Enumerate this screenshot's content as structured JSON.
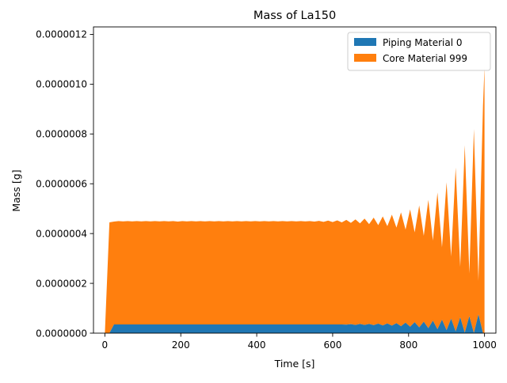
{
  "chart_data": {
    "type": "area",
    "stacked": true,
    "title": "Mass of La150",
    "xlabel": "Time [s]",
    "ylabel": "Mass [g]",
    "xlim": [
      -30,
      1030
    ],
    "ylim": [
      0,
      1.23e-06
    ],
    "xticks": [
      0,
      200,
      400,
      600,
      800,
      1000
    ],
    "xtick_labels": [
      "0",
      "200",
      "400",
      "600",
      "800",
      "1000"
    ],
    "yticks": [
      0,
      2e-07,
      4e-07,
      6e-07,
      8e-07,
      1e-06,
      1.2e-06
    ],
    "ytick_labels": [
      "0.0000000",
      "0.0000002",
      "0.0000004",
      "0.0000006",
      "0.0000008",
      "0.0000010",
      "0.0000012"
    ],
    "legend_position": "top-right",
    "grid": false,
    "series": [
      {
        "name": "Piping Material 0",
        "color": "#1f77b4"
      },
      {
        "name": "Core Material 999",
        "color": "#ff7f0e"
      }
    ],
    "x": [
      0,
      12,
      24,
      36,
      48,
      60,
      72,
      84,
      96,
      108,
      120,
      132,
      144,
      156,
      168,
      180,
      192,
      204,
      216,
      228,
      240,
      252,
      264,
      276,
      288,
      300,
      312,
      324,
      336,
      348,
      360,
      372,
      384,
      396,
      408,
      420,
      432,
      444,
      456,
      468,
      480,
      492,
      504,
      516,
      528,
      540,
      552,
      564,
      576,
      588,
      600,
      612,
      624,
      636,
      648,
      660,
      672,
      684,
      696,
      708,
      720,
      732,
      744,
      756,
      768,
      780,
      792,
      804,
      816,
      828,
      840,
      852,
      864,
      876,
      888,
      900,
      912,
      924,
      936,
      948,
      960,
      972,
      984,
      996,
      1000
    ],
    "piping": [
      0,
      0,
      3.5e-08,
      3.5e-08,
      3.5e-08,
      3.5e-08,
      3.5e-08,
      3.5e-08,
      3.5e-08,
      3.5e-08,
      3.5e-08,
      3.5e-08,
      3.5e-08,
      3.5e-08,
      3.5e-08,
      3.5e-08,
      3.5e-08,
      3.5e-08,
      3.5e-08,
      3.5e-08,
      3.5e-08,
      3.5e-08,
      3.5e-08,
      3.5e-08,
      3.5e-08,
      3.5e-08,
      3.5e-08,
      3.5e-08,
      3.5e-08,
      3.5e-08,
      3.5e-08,
      3.5e-08,
      3.5e-08,
      3.5e-08,
      3.5e-08,
      3.5e-08,
      3.5e-08,
      3.5e-08,
      3.5e-08,
      3.5e-08,
      3.5e-08,
      3.5e-08,
      3.5e-08,
      3.5e-08,
      3.5e-08,
      3.5e-08,
      3.5e-08,
      3.5e-08,
      3.5e-08,
      3.5e-08,
      3.5e-08,
      3.5e-08,
      3.5e-08,
      3.4e-08,
      3.6e-08,
      3.3e-08,
      3.7e-08,
      3.3e-08,
      3.7e-08,
      3.2e-08,
      3.8e-08,
      3.1e-08,
      3.9e-08,
      3e-08,
      4e-08,
      2.8e-08,
      4.2e-08,
      2.6e-08,
      4.4e-08,
      2.3e-08,
      4.6e-08,
      2e-08,
      5e-08,
      1.6e-08,
      5.4e-08,
      1.2e-08,
      5.8e-08,
      7e-09,
      6.3e-08,
      2e-09,
      6.8e-08,
      0,
      7.5e-08,
      0,
      0
    ],
    "total": [
      0,
      4.45e-07,
      4.48e-07,
      4.5e-07,
      4.49e-07,
      4.5e-07,
      4.49e-07,
      4.5e-07,
      4.49e-07,
      4.5e-07,
      4.49e-07,
      4.5e-07,
      4.49e-07,
      4.5e-07,
      4.49e-07,
      4.5e-07,
      4.48e-07,
      4.5e-07,
      4.49e-07,
      4.5e-07,
      4.49e-07,
      4.5e-07,
      4.49e-07,
      4.5e-07,
      4.49e-07,
      4.5e-07,
      4.49e-07,
      4.5e-07,
      4.49e-07,
      4.5e-07,
      4.49e-07,
      4.5e-07,
      4.49e-07,
      4.5e-07,
      4.49e-07,
      4.5e-07,
      4.49e-07,
      4.5e-07,
      4.49e-07,
      4.5e-07,
      4.49e-07,
      4.5e-07,
      4.49e-07,
      4.5e-07,
      4.49e-07,
      4.5e-07,
      4.48e-07,
      4.51e-07,
      4.47e-07,
      4.52e-07,
      4.46e-07,
      4.53e-07,
      4.45e-07,
      4.55e-07,
      4.43e-07,
      4.57e-07,
      4.41e-07,
      4.6e-07,
      4.38e-07,
      4.64e-07,
      4.34e-07,
      4.69e-07,
      4.3e-07,
      4.76e-07,
      4.24e-07,
      4.85e-07,
      4.16e-07,
      4.97e-07,
      4.05e-07,
      5.13e-07,
      3.91e-07,
      5.35e-07,
      3.72e-07,
      5.65e-07,
      3.45e-07,
      6.06e-07,
      3.08e-07,
      6.65e-07,
      2.66e-07,
      7.55e-07,
      2.4e-07,
      8.2e-07,
      2.1e-07,
      9.15e-07,
      1.07e-06
    ]
  }
}
